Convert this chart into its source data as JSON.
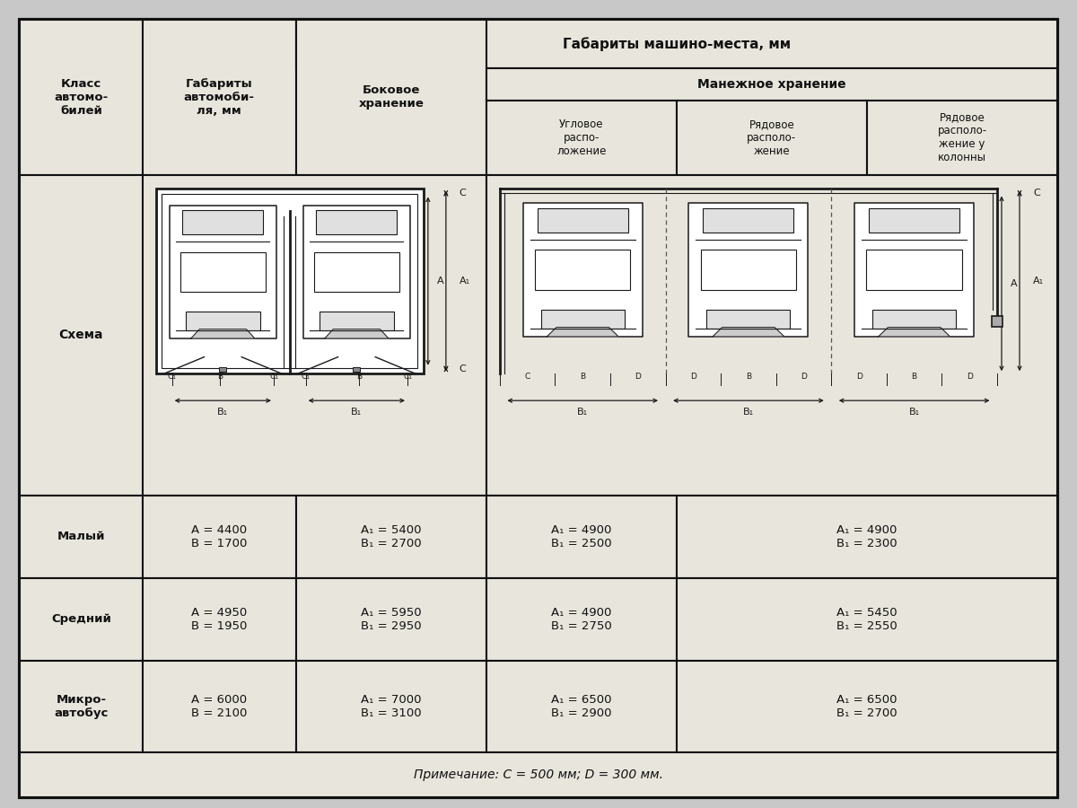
{
  "title": "Габариты машино-места, мм",
  "subtitle": "Манежное хранение",
  "col0_header": "Класс\nавтомо-\nбилей",
  "col1_header": "Габариты\nавтомоби-\nля, мм",
  "col2_header": "Боковое\nхранение",
  "col3_header": "Угловое\nраспо-\nложение",
  "col4_header": "Рядовое\nрасполо-\nжение",
  "col5_header": "Рядовое\nрасполо-\nжение у\nколонны",
  "schema_label": "Схема",
  "rows": [
    {
      "class": "Малый",
      "dims": "A = 4400\nB = 1700",
      "side": "A₁ = 5400\nB₁ = 2700",
      "angular": "A₁ = 4900\nB₁ = 2500",
      "row_col": "A₁ = 4900\nB₁ = 2300"
    },
    {
      "class": "Средний",
      "dims": "A = 4950\nB = 1950",
      "side": "A₁ = 5950\nB₁ = 2950",
      "angular": "A₁ = 4900\nB₁ = 2750",
      "row_col": "A₁ = 5450\nB₁ = 2550"
    },
    {
      "class": "Микро-\nавтобус",
      "dims": "A = 6000\nB = 2100",
      "side": "A₁ = 7000\nB₁ = 3100",
      "angular": "A₁ = 6500\nB₁ = 2900",
      "row_col": "A₁ = 6500\nB₁ = 2700"
    }
  ],
  "note": "Примечание: C = 500 мм; D = 300 мм.",
  "bg_color": "#c8c8c8",
  "cell_color": "#e8e6dc",
  "border_color": "#111111"
}
